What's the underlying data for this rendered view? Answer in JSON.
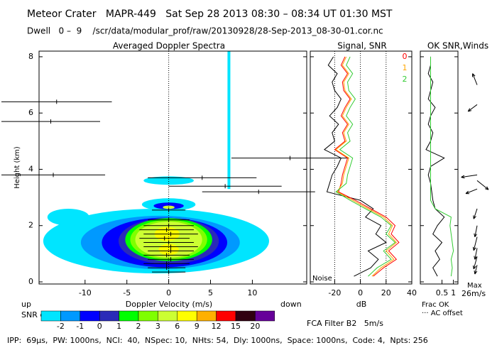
{
  "chart_data": {
    "type": "profiler",
    "title": "Meteor Crater   MAPR-449   Sat Sep 28 2013 08:30 – 08:34 UT 01:30 MST",
    "subtitle": "Dwell   0 –  9    /scr/data/modular_prof/raw/20130928/28-Sep-2013_08-30-01.cor.nc",
    "footer": "IPP:  69μs,  PW: 1000ns,  NCI:  40,  NSpec: 10,  NHts: 54,  Dly: 1000ns,  Space: 1000ns,  Code: 4,  Npts: 256",
    "ylabel": "Height (km)",
    "ylim": [
      0,
      8.2
    ],
    "yticks": [
      0,
      2,
      4,
      6,
      8
    ],
    "spectra": {
      "title": "Averaged Doppler Spectra",
      "xlabel": "Doppler Velocity (m/s)",
      "left_label": "up",
      "right_label": "down",
      "xlim": [
        -15.5,
        16.5
      ],
      "xticks": [
        -10,
        -5,
        0,
        5,
        10
      ],
      "contours": [
        {
          "color_index": 0,
          "v": -1.5,
          "h": 1.45,
          "dv": 13.5,
          "dh": 1.15
        },
        {
          "color_index": 0,
          "v": -12,
          "h": 2.3,
          "dv": 2.5,
          "dh": 0.3
        },
        {
          "color_index": 0,
          "v": 0,
          "h": 3.6,
          "dv": 3,
          "dh": 0.15
        },
        {
          "color_index": 0,
          "v": 0,
          "h": 2.75,
          "dv": 3.2,
          "dh": 0.22
        },
        {
          "color_index": 1,
          "v": -1,
          "h": 1.4,
          "dv": 9.5,
          "dh": 0.95
        },
        {
          "color_index": 2,
          "v": -0.5,
          "h": 1.4,
          "dv": 7.5,
          "dh": 0.88
        },
        {
          "color_index": 2,
          "v": 0,
          "h": 2.7,
          "dv": 1.8,
          "dh": 0.12
        },
        {
          "color_index": 3,
          "v": 0,
          "h": 1.45,
          "dv": 6,
          "dh": 0.82
        },
        {
          "color_index": 4,
          "v": 0,
          "h": 1.5,
          "dv": 5.2,
          "dh": 0.76
        },
        {
          "color_index": 5,
          "v": 0,
          "h": 1.5,
          "dv": 4.6,
          "dh": 0.7
        },
        {
          "color_index": 6,
          "v": 0,
          "h": 1.5,
          "dv": 4,
          "dh": 0.64
        },
        {
          "color_index": 6,
          "v": 0,
          "h": 2.65,
          "dv": 0.7,
          "dh": 0.06
        },
        {
          "color_index": 7,
          "v": -0.2,
          "h": 1.7,
          "dv": 1.5,
          "dh": 0.25
        },
        {
          "color_index": 7,
          "v": 0,
          "h": 1.15,
          "dv": 1.2,
          "dh": 0.2
        }
      ],
      "interference": {
        "v": 7.2,
        "h1": 3.3,
        "h2": 8.2
      },
      "spread_bars": [
        {
          "height": 6.4,
          "v1": -20,
          "v2": -6.8
        },
        {
          "height": 5.7,
          "v1": -20,
          "v2": -8.2
        },
        {
          "height": 3.8,
          "v1": -20,
          "v2": -7.6
        },
        {
          "height": 4.4,
          "v1": 7.5,
          "v2": 21.5
        },
        {
          "height": 3.7,
          "v1": -2.5,
          "v2": 10.5
        },
        {
          "height": 3.4,
          "v1": 0,
          "v2": 13.5
        },
        {
          "height": 3.2,
          "v1": 4,
          "v2": 17.5
        },
        {
          "height": 2.55,
          "v1": -2,
          "v2": 2
        },
        {
          "height": 2.2,
          "v1": -2.5,
          "v2": 2.5
        },
        {
          "height": 2.0,
          "v1": -3,
          "v2": 3
        },
        {
          "height": 1.85,
          "v1": -3.5,
          "v2": 3
        },
        {
          "height": 1.7,
          "v1": -3,
          "v2": 3.5
        },
        {
          "height": 1.55,
          "v1": -3.5,
          "v2": 2.5
        },
        {
          "height": 1.4,
          "v1": -3,
          "v2": 3
        },
        {
          "height": 1.25,
          "v1": -3,
          "v2": 3.5
        },
        {
          "height": 1.1,
          "v1": -2.5,
          "v2": 3
        },
        {
          "height": 0.95,
          "v1": -3,
          "v2": 2.5
        },
        {
          "height": 0.8,
          "v1": -2.5,
          "v2": 3
        },
        {
          "height": 0.65,
          "v1": -3,
          "v2": 2.5
        },
        {
          "height": 0.5,
          "v1": -2.5,
          "v2": 2
        },
        {
          "height": 0.35,
          "v1": -2,
          "v2": 2
        }
      ]
    },
    "colorbar": {
      "label": "SNR dB",
      "ticks": [
        -2,
        -1,
        0,
        1,
        2,
        3,
        6,
        9,
        12,
        15,
        20
      ],
      "colors": [
        "#00e5ff",
        "#0099ff",
        "#0000ff",
        "#2a2ab8",
        "#00ff00",
        "#7fff00",
        "#ccff33",
        "#ffff00",
        "#ffb000",
        "#ff0000",
        "#300010",
        "#660099"
      ]
    },
    "signal": {
      "title": "Signal, SNR",
      "xlabel": "dB",
      "noise_label": "Noise",
      "xlim": [
        -39,
        40
      ],
      "xticks": [
        -20,
        0,
        20,
        40
      ],
      "heights": [
        0.2,
        0.5,
        0.8,
        1.1,
        1.4,
        1.7,
        2.0,
        2.3,
        2.6,
        2.9,
        3.2,
        3.5,
        3.8,
        4.1,
        4.4,
        4.7,
        5.0,
        5.3,
        5.6,
        5.9,
        6.2,
        6.5,
        6.8,
        7.1,
        7.4,
        7.7,
        8.0
      ],
      "noise": {
        "color": "#000000",
        "values": [
          -5,
          8,
          14,
          6,
          20,
          12,
          16,
          4,
          10,
          0,
          -26,
          -24,
          -22,
          -18,
          -15,
          -28,
          -20,
          -22,
          -17,
          -24,
          -18,
          -15,
          -20,
          -22,
          -18,
          -25,
          -21
        ]
      },
      "series": [
        {
          "name": "0",
          "color": "#ff0000",
          "values": [
            10,
            18,
            28,
            22,
            30,
            24,
            27,
            20,
            8,
            -4,
            -17,
            -15,
            -14,
            -12,
            -10,
            -20,
            -12,
            -14,
            -10,
            -15,
            -12,
            -8,
            -13,
            -14,
            -10,
            -15,
            -12
          ]
        },
        {
          "name": "1",
          "color": "#ffa500",
          "values": [
            9,
            16,
            26,
            20,
            28,
            22,
            25,
            18,
            6,
            -6,
            -18,
            -14,
            -13,
            -11,
            -9,
            -19,
            -11,
            -13,
            -9,
            -14,
            -11,
            -7,
            -12,
            -13,
            -9,
            -14,
            -11
          ]
        },
        {
          "name": "2",
          "color": "#33cc33",
          "values": [
            6,
            13,
            24,
            18,
            27,
            20,
            24,
            16,
            4,
            -8,
            -19,
            -11,
            -10,
            -8,
            -6,
            -16,
            -8,
            -10,
            -6,
            -11,
            -8,
            -4,
            -9,
            -10,
            -6,
            -11,
            -8
          ]
        }
      ]
    },
    "winds": {
      "title": "OK SNR,Winds",
      "xlabel": "Frac OK",
      "offset_label": "··· AC offset",
      "max_label": "Max",
      "max_speed_label": "26m/s",
      "filter_label": "FCA Filter B2   5m/s",
      "xlim": [
        -0.45,
        1.2
      ],
      "xticks": [
        {
          "value": 0.5,
          "label": "0.5"
        },
        1
      ],
      "frac_ok": {
        "color": "#000000",
        "values": [
          0.3,
          0.1,
          0.4,
          0.2,
          0.5,
          0.1,
          0.3,
          0.6,
          0.2,
          0.1,
          0.05,
          0,
          -0.1,
          0,
          0.6,
          -0.2,
          0,
          0.1,
          -0.1,
          0,
          0.2,
          -0.1,
          0,
          0.1,
          -0.1,
          0,
          0
        ]
      },
      "snr_ok": {
        "color": "#33cc33",
        "values": [
          0.9,
          0.95,
          0.9,
          1,
          0.95,
          0.9,
          0.85,
          0.9,
          0.2,
          0,
          0,
          0,
          0,
          0,
          0,
          0,
          0,
          0,
          0,
          0,
          0,
          0,
          0,
          0,
          0,
          0,
          0
        ]
      },
      "vectors": [
        {
          "height": 7.0,
          "u": -4,
          "v": 10
        },
        {
          "height": 6.3,
          "u": -8,
          "v": -6
        },
        {
          "height": 3.8,
          "u": -14,
          "v": -2
        },
        {
          "height": 3.6,
          "u": 10,
          "v": -8
        },
        {
          "height": 3.3,
          "u": -10,
          "v": -4
        },
        {
          "height": 2.6,
          "u": -3,
          "v": -9
        },
        {
          "height": 2.0,
          "u": -2,
          "v": -10
        },
        {
          "height": 1.6,
          "u": -3,
          "v": -12
        },
        {
          "height": 1.2,
          "u": -2,
          "v": -10
        },
        {
          "height": 0.9,
          "u": -3,
          "v": -11
        },
        {
          "height": 0.6,
          "u": -2,
          "v": -8
        }
      ]
    }
  }
}
